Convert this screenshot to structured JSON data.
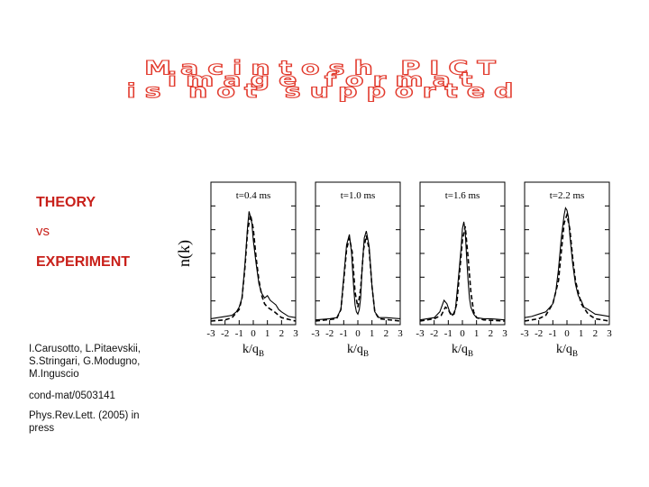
{
  "slide": {
    "pict_notice": [
      "Macintosh PICT",
      "image format",
      "is not supported"
    ],
    "theory": "THEORY",
    "vs": "vs",
    "experiment": "EXPERIMENT",
    "authors": "I.Carusotto, L.Pitaevskii, S.Stringari, G.Modugno, M.Inguscio",
    "arxiv": "cond-mat/0503141",
    "journal": "Phys.Rev.Lett. (2005) in press",
    "colors": {
      "heading": "#c8201a",
      "pict_outline": "#e23b2e"
    }
  },
  "chart_data": {
    "type": "line",
    "ylabel": "n(k)",
    "xlabel": "k/q",
    "xlabel_sub": "B",
    "xlim": [
      -3,
      3
    ],
    "xticks": [
      -3,
      -2,
      -1,
      0,
      1,
      2,
      3
    ],
    "xtick_labels": [
      "-3",
      "-2",
      "-1",
      "0",
      "1",
      "2",
      "3"
    ],
    "ylim": [
      0,
      1
    ],
    "panels": [
      {
        "title": "t=0.4 ms",
        "series": [
          {
            "style": "dashed",
            "x": [
              -3,
              -2,
              -1.5,
              -1,
              -0.8,
              -0.6,
              -0.4,
              -0.2,
              0,
              0.2,
              0.4,
              0.6,
              0.8,
              1,
              1.5,
              2,
              3
            ],
            "y": [
              0,
              0.01,
              0.03,
              0.1,
              0.2,
              0.45,
              0.78,
              0.92,
              0.8,
              0.55,
              0.35,
              0.22,
              0.15,
              0.12,
              0.08,
              0.03,
              0
            ]
          },
          {
            "style": "solid",
            "x": [
              -3,
              -2.5,
              -2,
              -1.5,
              -1.2,
              -1,
              -0.8,
              -0.6,
              -0.4,
              -0.3,
              -0.2,
              -0.1,
              0,
              0.2,
              0.4,
              0.6,
              0.8,
              1,
              1.2,
              1.4,
              1.6,
              1.8,
              2,
              2.5,
              3
            ],
            "y": [
              0.02,
              0.03,
              0.04,
              0.05,
              0.08,
              0.12,
              0.2,
              0.48,
              0.82,
              0.95,
              0.9,
              0.85,
              0.7,
              0.5,
              0.32,
              0.24,
              0.2,
              0.22,
              0.18,
              0.16,
              0.14,
              0.1,
              0.08,
              0.04,
              0.03
            ]
          }
        ]
      },
      {
        "title": "t=1.0 ms",
        "series": [
          {
            "style": "dashed",
            "x": [
              -3,
              -1.5,
              -1.2,
              -1,
              -0.8,
              -0.6,
              -0.4,
              -0.2,
              0,
              0.2,
              0.4,
              0.6,
              0.8,
              1,
              1.2,
              1.5,
              3
            ],
            "y": [
              0,
              0.02,
              0.1,
              0.35,
              0.62,
              0.72,
              0.6,
              0.25,
              0.12,
              0.28,
              0.62,
              0.74,
              0.62,
              0.3,
              0.08,
              0.02,
              0
            ]
          },
          {
            "style": "solid",
            "x": [
              -3,
              -2,
              -1.5,
              -1.2,
              -1,
              -0.8,
              -0.6,
              -0.45,
              -0.3,
              -0.2,
              -0.1,
              0,
              0.1,
              0.2,
              0.3,
              0.45,
              0.6,
              0.8,
              1,
              1.2,
              1.5,
              2,
              3
            ],
            "y": [
              0.01,
              0.02,
              0.03,
              0.1,
              0.38,
              0.66,
              0.75,
              0.6,
              0.3,
              0.14,
              0.08,
              0.06,
              0.1,
              0.2,
              0.45,
              0.72,
              0.78,
              0.65,
              0.3,
              0.08,
              0.03,
              0.03,
              0.02
            ]
          }
        ]
      },
      {
        "title": "t=1.6 ms",
        "series": [
          {
            "style": "dashed",
            "x": [
              -3,
              -2,
              -1.5,
              -1.2,
              -1,
              -0.8,
              -0.6,
              -0.4,
              -0.2,
              0,
              0.2,
              0.4,
              0.6,
              0.8,
              1,
              1.5,
              3
            ],
            "y": [
              0,
              0.02,
              0.05,
              0.12,
              0.1,
              0.05,
              0.06,
              0.15,
              0.42,
              0.7,
              0.82,
              0.55,
              0.25,
              0.08,
              0.03,
              0.01,
              0
            ]
          },
          {
            "style": "solid",
            "x": [
              -3,
              -2,
              -1.6,
              -1.3,
              -1.1,
              -0.9,
              -0.7,
              -0.5,
              -0.3,
              -0.1,
              0,
              0.1,
              0.2,
              0.3,
              0.4,
              0.5,
              0.6,
              0.8,
              1,
              1.5,
              2,
              3
            ],
            "y": [
              0.01,
              0.03,
              0.08,
              0.18,
              0.15,
              0.08,
              0.05,
              0.1,
              0.35,
              0.62,
              0.8,
              0.86,
              0.78,
              0.55,
              0.35,
              0.2,
              0.12,
              0.06,
              0.03,
              0.02,
              0.02,
              0.01
            ]
          }
        ]
      },
      {
        "title": "t=2.2 ms",
        "series": [
          {
            "style": "dashed",
            "x": [
              -3,
              -2,
              -1.5,
              -1,
              -0.6,
              -0.4,
              -0.2,
              0,
              0.2,
              0.4,
              0.6,
              1,
              1.5,
              2,
              3
            ],
            "y": [
              0,
              0.02,
              0.05,
              0.15,
              0.35,
              0.6,
              0.85,
              0.92,
              0.8,
              0.55,
              0.35,
              0.15,
              0.06,
              0.02,
              0
            ]
          },
          {
            "style": "solid",
            "x": [
              -3,
              -2.5,
              -2,
              -1.5,
              -1.2,
              -1,
              -0.8,
              -0.6,
              -0.4,
              -0.2,
              -0.1,
              0,
              0.1,
              0.2,
              0.4,
              0.6,
              0.8,
              1,
              1.2,
              1.5,
              2,
              2.5,
              3
            ],
            "y": [
              0.03,
              0.04,
              0.06,
              0.08,
              0.12,
              0.15,
              0.25,
              0.45,
              0.72,
              0.92,
              0.98,
              0.96,
              0.9,
              0.75,
              0.5,
              0.32,
              0.22,
              0.18,
              0.12,
              0.1,
              0.06,
              0.05,
              0.04
            ]
          }
        ]
      }
    ]
  }
}
